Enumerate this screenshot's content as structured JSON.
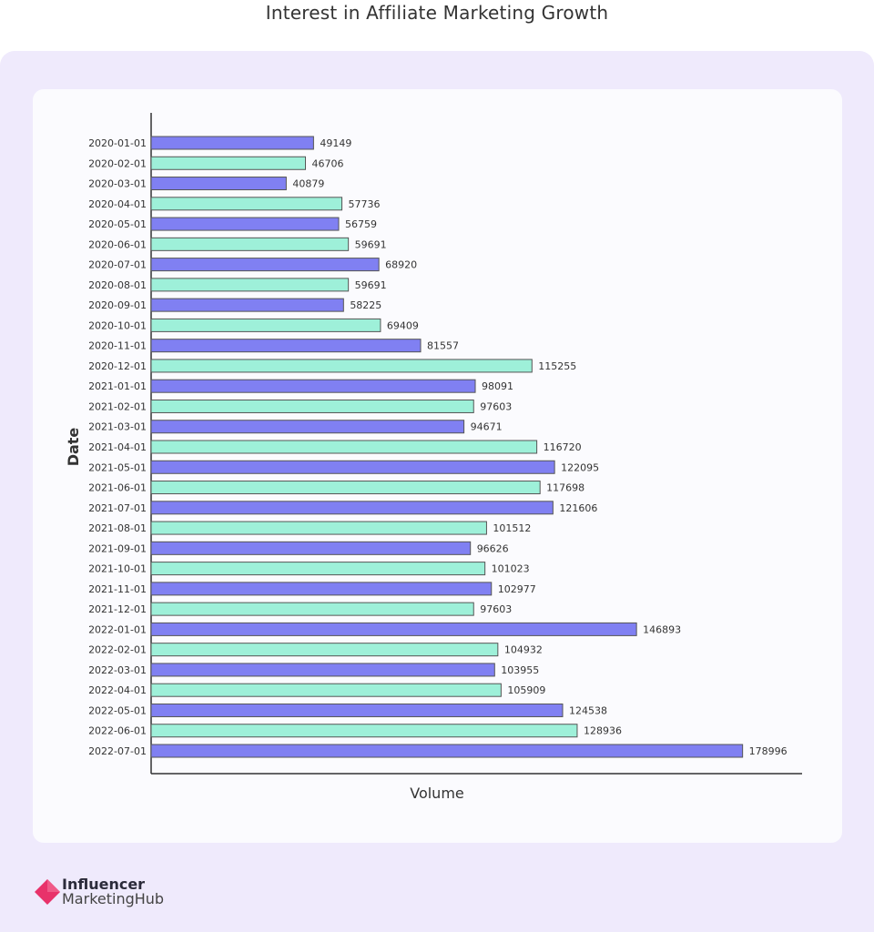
{
  "chart_data": {
    "type": "bar",
    "orientation": "horizontal",
    "title": "Interest in Affiliate Marketing Growth",
    "xlabel": "Volume",
    "ylabel": "Date",
    "xlim": [
      0,
      197000
    ],
    "grid": false,
    "colors": [
      "#8080f2",
      "#9ef0d9"
    ],
    "categories": [
      "2020-01-01",
      "2020-02-01",
      "2020-03-01",
      "2020-04-01",
      "2020-05-01",
      "2020-06-01",
      "2020-07-01",
      "2020-08-01",
      "2020-09-01",
      "2020-10-01",
      "2020-11-01",
      "2020-12-01",
      "2021-01-01",
      "2021-02-01",
      "2021-03-01",
      "2021-04-01",
      "2021-05-01",
      "2021-06-01",
      "2021-07-01",
      "2021-08-01",
      "2021-09-01",
      "2021-10-01",
      "2021-11-01",
      "2021-12-01",
      "2022-01-01",
      "2022-02-01",
      "2022-03-01",
      "2022-04-01",
      "2022-05-01",
      "2022-06-01",
      "2022-07-01"
    ],
    "values": [
      49149,
      46706,
      40879,
      57736,
      56759,
      59691,
      68920,
      59691,
      58225,
      69409,
      81557,
      115255,
      98091,
      97603,
      94671,
      116720,
      122095,
      117698,
      121606,
      101512,
      96626,
      101023,
      102977,
      97603,
      146893,
      104932,
      103955,
      105909,
      124538,
      128936,
      178996
    ]
  },
  "logo": {
    "line1": "Influencer",
    "line2": "MarketingHub"
  }
}
